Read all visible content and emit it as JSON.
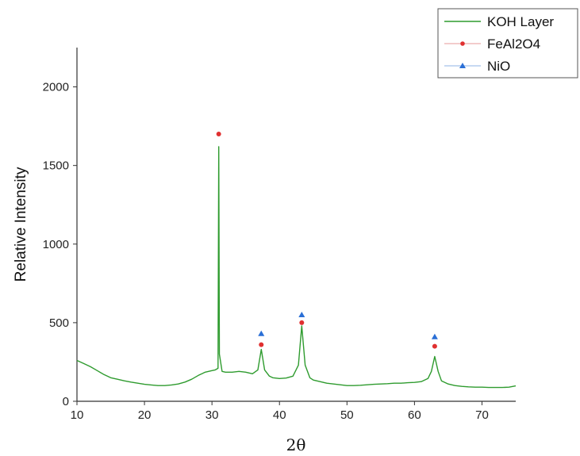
{
  "chart_data": {
    "type": "line",
    "title": "",
    "xlabel": "2θ",
    "ylabel": "Relative Intensity",
    "xlim": [
      10,
      75
    ],
    "ylim": [
      0,
      2250
    ],
    "x_ticks": [
      10,
      20,
      30,
      40,
      50,
      60,
      70
    ],
    "y_ticks": [
      0,
      500,
      1000,
      1500,
      2000
    ],
    "grid": false,
    "legend_position": "top-right",
    "legend": [
      "KOH Layer",
      "FeAl2O4",
      "NiO"
    ],
    "colors": {
      "line": "#2e9b2e",
      "feal2o4": "#e03030",
      "nio": "#2a6fd6"
    },
    "series": [
      {
        "name": "KOH Layer",
        "type": "line",
        "x": [
          10,
          11,
          12,
          13,
          14,
          15,
          16,
          17,
          18,
          19,
          20,
          21,
          22,
          23,
          24,
          25,
          26,
          27,
          28,
          29,
          30,
          30.5,
          30.9,
          31.0,
          31.1,
          31.5,
          32,
          33,
          34,
          35,
          36,
          36.8,
          37.3,
          37.8,
          38.5,
          39,
          40,
          41,
          42,
          42.8,
          43.3,
          43.8,
          44.5,
          45,
          46,
          47,
          48,
          49,
          50,
          51,
          52,
          53,
          54,
          55,
          56,
          57,
          58,
          59,
          60,
          61,
          62,
          62.5,
          63.0,
          63.5,
          64,
          65,
          66,
          67,
          68,
          69,
          70,
          71,
          72,
          73,
          74,
          75
        ],
        "y": [
          260,
          240,
          220,
          195,
          170,
          150,
          140,
          130,
          122,
          115,
          108,
          104,
          100,
          100,
          104,
          110,
          122,
          140,
          165,
          185,
          195,
          200,
          210,
          1620,
          300,
          190,
          185,
          185,
          190,
          185,
          175,
          200,
          330,
          200,
          160,
          150,
          145,
          148,
          160,
          230,
          480,
          230,
          150,
          135,
          125,
          115,
          110,
          105,
          100,
          100,
          102,
          105,
          108,
          110,
          112,
          115,
          115,
          118,
          120,
          125,
          145,
          190,
          285,
          190,
          130,
          110,
          100,
          95,
          92,
          90,
          90,
          88,
          88,
          88,
          90,
          98
        ]
      },
      {
        "name": "FeAl2O4",
        "type": "scatter",
        "x": [
          31.0,
          37.3,
          43.3,
          63.0
        ],
        "y": [
          1700,
          360,
          500,
          350
        ]
      },
      {
        "name": "NiO",
        "type": "scatter",
        "x": [
          37.3,
          43.3,
          63.0
        ],
        "y": [
          430,
          550,
          410
        ]
      }
    ]
  }
}
